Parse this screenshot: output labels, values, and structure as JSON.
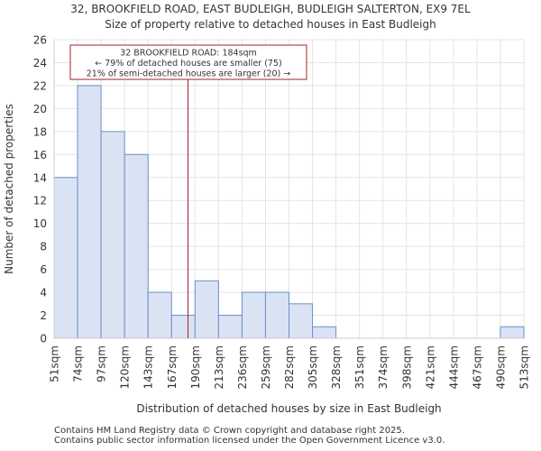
{
  "chart_data": {
    "type": "bar",
    "title_line1": "32, BROOKFIELD ROAD, EAST BUDLEIGH, BUDLEIGH SALTERTON, EX9 7EL",
    "title_line2": "Size of property relative to detached houses in East Budleigh",
    "xlabel": "Distribution of detached houses by size in East Budleigh",
    "ylabel": "Number of detached properties",
    "ylim": [
      0,
      26
    ],
    "yticks": [
      0,
      2,
      4,
      6,
      8,
      10,
      12,
      14,
      16,
      18,
      20,
      22,
      24,
      26
    ],
    "bin_edges": [
      "51sqm",
      "74sqm",
      "97sqm",
      "120sqm",
      "143sqm",
      "167sqm",
      "190sqm",
      "213sqm",
      "236sqm",
      "259sqm",
      "282sqm",
      "305sqm",
      "328sqm",
      "351sqm",
      "374sqm",
      "398sqm",
      "421sqm",
      "444sqm",
      "467sqm",
      "490sqm",
      "513sqm"
    ],
    "values": [
      14,
      22,
      18,
      16,
      4,
      2,
      5,
      2,
      4,
      4,
      3,
      1,
      0,
      0,
      0,
      0,
      0,
      0,
      0,
      1
    ],
    "marker": {
      "value_bin_position": 5.7,
      "line1": "32 BROOKFIELD ROAD: 184sqm",
      "line2": "← 79% of detached houses are smaller (75)",
      "line3": "21% of semi-detached houses are larger (20) →"
    },
    "colors": {
      "bar_fill": "#dae3f4",
      "bar_edge": "#6b8fc9",
      "marker_line": "#a0202a",
      "grid": "#e4e4e4"
    }
  },
  "footer": {
    "line1": "Contains HM Land Registry data © Crown copyright and database right 2025.",
    "line2": "Contains public sector information licensed under the Open Government Licence v3.0."
  }
}
